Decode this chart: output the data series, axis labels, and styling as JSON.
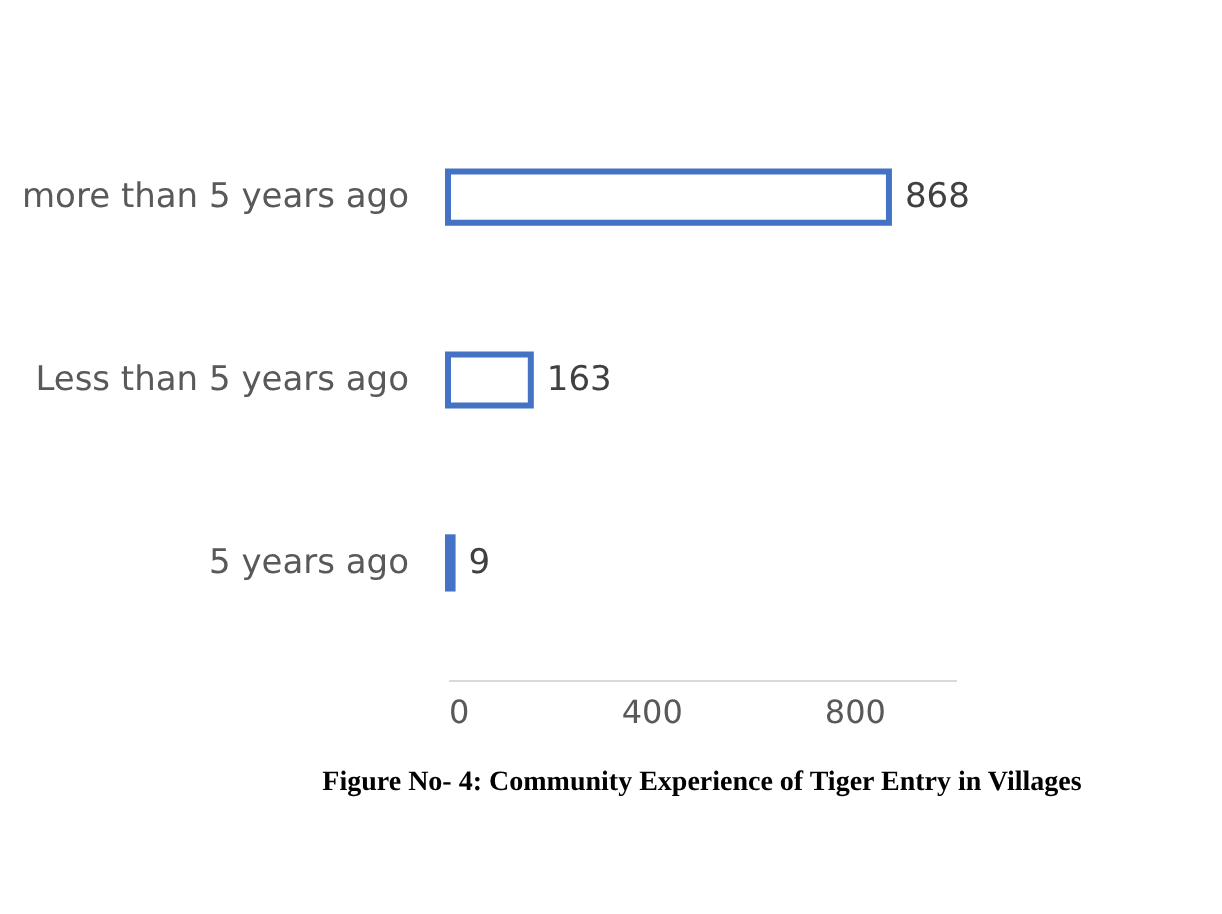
{
  "chart_data": {
    "type": "bar",
    "orientation": "horizontal",
    "categories": [
      "more than 5 years ago",
      "Less than 5 years ago",
      "5 years ago"
    ],
    "values": [
      868,
      163,
      9
    ],
    "color": "#4472c4",
    "xlim": [
      0,
      1000
    ],
    "xticks": [
      0,
      400,
      800
    ],
    "grid": false,
    "data_labels": true,
    "annotations": [
      "Figure No- 4: Community Experience of Tiger Entry in Villages"
    ]
  }
}
